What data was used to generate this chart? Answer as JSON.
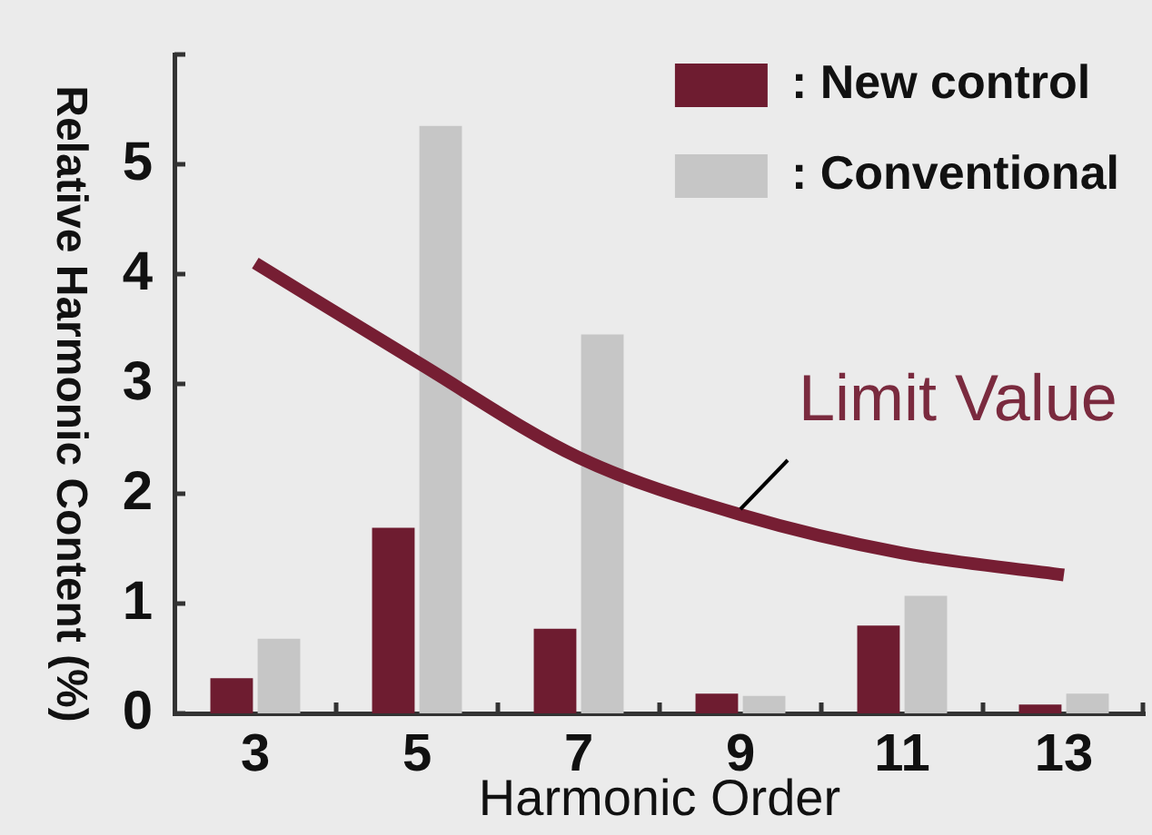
{
  "chart_data": {
    "type": "bar",
    "xlabel": "Harmonic Order",
    "ylabel": "Relative Harmonic Content (%)",
    "categories": [
      "3",
      "5",
      "7",
      "9",
      "11",
      "13"
    ],
    "series": [
      {
        "name": ": New control",
        "color": "#6e1c30",
        "values": [
          0.32,
          1.69,
          0.77,
          0.18,
          0.8,
          0.08
        ]
      },
      {
        "name": ": Conventional",
        "color": "#c6c6c6",
        "values": [
          0.68,
          5.35,
          3.45,
          0.16,
          1.07,
          0.18
        ]
      },
      {
        "type": "line",
        "color": "#761e33",
        "marker": "none",
        "values": [
          4.1,
          3.2,
          2.33,
          1.81,
          1.46,
          1.26
        ]
      }
    ],
    "ylim": [
      0,
      6
    ],
    "yticks": [
      0,
      1,
      2,
      3,
      4,
      5,
      {
        "value": 6,
        "label": null
      }
    ],
    "legend": "top right",
    "annotations": [
      {
        "text": "Limit Value",
        "x": "9",
        "y": 1.81
      }
    ]
  }
}
